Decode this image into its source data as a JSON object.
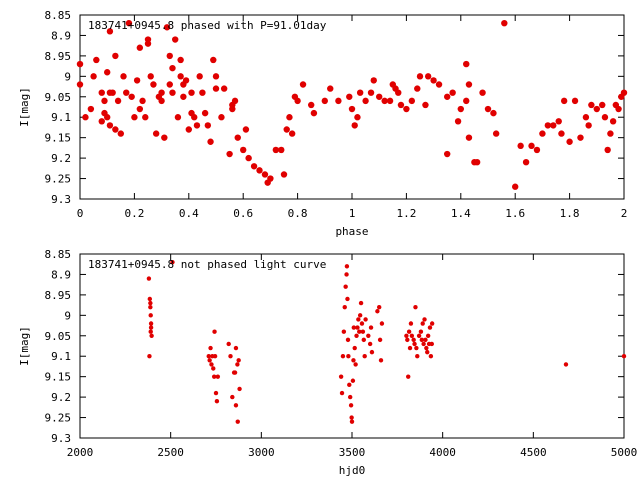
{
  "chart_data": [
    {
      "type": "scatter",
      "title": "183741+0945.8 phased with P=91.01day",
      "xlabel": "phase",
      "ylabel": "I[mag]",
      "xlim": [
        0,
        2
      ],
      "ylim": [
        8.85,
        9.3
      ],
      "y_inverted": true,
      "x_ticks": [
        "0",
        "0.2",
        "0.4",
        "0.6",
        "0.8",
        "1",
        "1.2",
        "1.4",
        "1.6",
        "1.8",
        "2"
      ],
      "y_ticks": [
        "8.85",
        "8.9",
        "8.95",
        "9",
        "9.05",
        "9.1",
        "9.15",
        "9.2",
        "9.25",
        "9.3"
      ],
      "marker_color": "#e00000",
      "points": [
        [
          0.0,
          8.97
        ],
        [
          0.0,
          9.02
        ],
        [
          0.02,
          9.1
        ],
        [
          0.04,
          9.08
        ],
        [
          0.05,
          9.0
        ],
        [
          0.06,
          8.96
        ],
        [
          0.08,
          9.04
        ],
        [
          0.08,
          9.11
        ],
        [
          0.09,
          9.06
        ],
        [
          0.09,
          9.09
        ],
        [
          0.1,
          9.1
        ],
        [
          0.1,
          8.99
        ],
        [
          0.11,
          9.04
        ],
        [
          0.11,
          9.12
        ],
        [
          0.11,
          8.89
        ],
        [
          0.12,
          9.04
        ],
        [
          0.13,
          9.13
        ],
        [
          0.13,
          8.95
        ],
        [
          0.14,
          9.06
        ],
        [
          0.15,
          9.14
        ],
        [
          0.16,
          9.0
        ],
        [
          0.17,
          9.04
        ],
        [
          0.18,
          8.87
        ],
        [
          0.19,
          9.05
        ],
        [
          0.2,
          9.1
        ],
        [
          0.21,
          9.01
        ],
        [
          0.22,
          9.08
        ],
        [
          0.22,
          8.93
        ],
        [
          0.23,
          9.06
        ],
        [
          0.24,
          9.1
        ],
        [
          0.25,
          8.91
        ],
        [
          0.25,
          8.92
        ],
        [
          0.26,
          9.0
        ],
        [
          0.27,
          9.02
        ],
        [
          0.28,
          9.14
        ],
        [
          0.29,
          9.05
        ],
        [
          0.3,
          9.04
        ],
        [
          0.3,
          9.06
        ],
        [
          0.31,
          9.15
        ],
        [
          0.32,
          8.88
        ],
        [
          0.33,
          9.02
        ],
        [
          0.34,
          9.04
        ],
        [
          0.35,
          8.91
        ],
        [
          0.36,
          9.1
        ],
        [
          0.37,
          9.0
        ],
        [
          0.37,
          8.96
        ],
        [
          0.38,
          9.02
        ],
        [
          0.38,
          9.05
        ],
        [
          0.39,
          9.01
        ],
        [
          0.4,
          9.13
        ],
        [
          0.41,
          9.04
        ],
        [
          0.41,
          9.09
        ],
        [
          0.42,
          9.1
        ],
        [
          0.43,
          9.12
        ],
        [
          0.44,
          9.0
        ],
        [
          0.45,
          9.04
        ],
        [
          0.46,
          9.09
        ],
        [
          0.47,
          9.12
        ],
        [
          0.48,
          9.16
        ],
        [
          0.49,
          8.96
        ],
        [
          0.5,
          9.0
        ],
        [
          0.5,
          9.03
        ],
        [
          0.52,
          9.1
        ],
        [
          0.53,
          9.03
        ],
        [
          0.55,
          9.19
        ],
        [
          0.56,
          9.07
        ],
        [
          0.56,
          9.08
        ],
        [
          0.57,
          9.06
        ],
        [
          0.58,
          9.15
        ],
        [
          0.6,
          9.18
        ],
        [
          0.61,
          9.13
        ],
        [
          0.62,
          9.2
        ],
        [
          0.64,
          9.22
        ],
        [
          0.66,
          9.23
        ],
        [
          0.68,
          9.24
        ],
        [
          0.69,
          9.26
        ],
        [
          0.7,
          9.25
        ],
        [
          0.72,
          9.18
        ],
        [
          0.74,
          9.18
        ],
        [
          0.75,
          9.24
        ],
        [
          0.76,
          9.13
        ],
        [
          0.77,
          9.1
        ],
        [
          0.78,
          9.14
        ],
        [
          0.79,
          9.05
        ],
        [
          0.8,
          9.06
        ],
        [
          0.82,
          9.02
        ],
        [
          0.85,
          9.07
        ],
        [
          0.86,
          9.09
        ],
        [
          0.9,
          9.06
        ],
        [
          0.92,
          9.03
        ],
        [
          0.95,
          9.06
        ],
        [
          0.99,
          9.05
        ],
        [
          1.0,
          9.08
        ],
        [
          1.01,
          9.12
        ],
        [
          1.02,
          9.1
        ],
        [
          1.03,
          9.04
        ],
        [
          1.05,
          9.06
        ],
        [
          1.07,
          9.04
        ],
        [
          1.08,
          9.01
        ],
        [
          1.1,
          9.05
        ],
        [
          1.12,
          9.06
        ],
        [
          1.14,
          9.06
        ],
        [
          1.15,
          9.02
        ],
        [
          1.16,
          9.03
        ],
        [
          1.17,
          9.04
        ],
        [
          1.18,
          9.07
        ],
        [
          1.2,
          9.08
        ],
        [
          1.22,
          9.06
        ],
        [
          1.24,
          9.03
        ],
        [
          1.25,
          9.0
        ],
        [
          1.27,
          9.07
        ],
        [
          1.28,
          9.0
        ],
        [
          1.3,
          9.01
        ],
        [
          1.32,
          9.02
        ],
        [
          1.35,
          9.05
        ],
        [
          1.37,
          9.04
        ],
        [
          1.39,
          9.11
        ],
        [
          1.4,
          9.08
        ],
        [
          1.42,
          9.06
        ],
        [
          1.42,
          8.97
        ],
        [
          1.43,
          9.15
        ],
        [
          1.43,
          9.02
        ],
        [
          1.45,
          9.21
        ],
        [
          1.46,
          9.21
        ],
        [
          1.48,
          9.04
        ],
        [
          1.5,
          9.08
        ],
        [
          1.52,
          9.09
        ],
        [
          1.53,
          9.14
        ],
        [
          1.56,
          8.87
        ],
        [
          1.6,
          9.27
        ],
        [
          1.62,
          9.17
        ],
        [
          1.64,
          9.21
        ],
        [
          1.66,
          9.17
        ],
        [
          1.68,
          9.18
        ],
        [
          1.7,
          9.14
        ],
        [
          1.72,
          9.12
        ],
        [
          1.74,
          9.12
        ],
        [
          1.76,
          9.11
        ],
        [
          1.77,
          9.14
        ],
        [
          1.78,
          9.06
        ],
        [
          1.8,
          9.16
        ],
        [
          1.82,
          9.06
        ],
        [
          1.84,
          9.15
        ],
        [
          1.86,
          9.1
        ],
        [
          1.87,
          9.12
        ],
        [
          1.88,
          9.07
        ],
        [
          1.9,
          9.08
        ],
        [
          1.92,
          9.07
        ],
        [
          1.93,
          9.1
        ],
        [
          1.94,
          9.18
        ],
        [
          1.95,
          9.14
        ],
        [
          1.96,
          9.11
        ],
        [
          1.97,
          9.07
        ],
        [
          1.98,
          9.08
        ],
        [
          1.99,
          9.05
        ],
        [
          2.0,
          9.04
        ],
        [
          1.35,
          9.19
        ],
        [
          0.33,
          8.95
        ],
        [
          0.34,
          8.98
        ]
      ]
    },
    {
      "type": "scatter",
      "title": "183741+0945.8 not phased light curve",
      "xlabel": "hjd0",
      "ylabel": "I[mag]",
      "xlim": [
        2000,
        5000
      ],
      "ylim": [
        8.85,
        9.3
      ],
      "y_inverted": true,
      "x_ticks": [
        "2000",
        "2500",
        "3000",
        "3500",
        "4000",
        "4500",
        "5000"
      ],
      "y_ticks": [
        "8.85",
        "8.9",
        "8.95",
        "9",
        "9.05",
        "9.1",
        "9.15",
        "9.2",
        "9.25",
        "9.3"
      ],
      "marker_color": "#e00000",
      "points": [
        [
          2380,
          8.91
        ],
        [
          2385,
          8.96
        ],
        [
          2388,
          8.97
        ],
        [
          2390,
          9.0
        ],
        [
          2390,
          9.04
        ],
        [
          2392,
          9.02
        ],
        [
          2395,
          9.05
        ],
        [
          2383,
          9.1
        ],
        [
          2388,
          8.98
        ],
        [
          2392,
          9.03
        ],
        [
          2510,
          8.87
        ],
        [
          2710,
          9.1
        ],
        [
          2715,
          9.11
        ],
        [
          2720,
          9.08
        ],
        [
          2725,
          9.12
        ],
        [
          2730,
          9.1
        ],
        [
          2735,
          9.13
        ],
        [
          2740,
          9.15
        ],
        [
          2745,
          9.1
        ],
        [
          2750,
          9.19
        ],
        [
          2755,
          9.21
        ],
        [
          2760,
          9.15
        ],
        [
          2742,
          9.04
        ],
        [
          2820,
          9.07
        ],
        [
          2830,
          9.1
        ],
        [
          2840,
          9.2
        ],
        [
          2850,
          9.14
        ],
        [
          2860,
          9.22
        ],
        [
          2870,
          9.26
        ],
        [
          2880,
          9.18
        ],
        [
          2875,
          9.11
        ],
        [
          2868,
          9.12
        ],
        [
          2860,
          9.08
        ],
        [
          2855,
          9.14
        ],
        [
          3440,
          9.15
        ],
        [
          3445,
          9.19
        ],
        [
          3450,
          9.1
        ],
        [
          3455,
          9.04
        ],
        [
          3460,
          8.98
        ],
        [
          3465,
          8.93
        ],
        [
          3470,
          8.9
        ],
        [
          3472,
          8.88
        ],
        [
          3475,
          8.96
        ],
        [
          3478,
          9.06
        ],
        [
          3480,
          9.1
        ],
        [
          3485,
          9.17
        ],
        [
          3490,
          9.2
        ],
        [
          3495,
          9.22
        ],
        [
          3498,
          9.25
        ],
        [
          3500,
          9.26
        ],
        [
          3505,
          9.16
        ],
        [
          3508,
          9.11
        ],
        [
          3510,
          9.03
        ],
        [
          3515,
          9.08
        ],
        [
          3520,
          9.12
        ],
        [
          3525,
          9.05
        ],
        [
          3530,
          9.03
        ],
        [
          3535,
          9.01
        ],
        [
          3540,
          9.04
        ],
        [
          3545,
          9.0
        ],
        [
          3550,
          8.97
        ],
        [
          3555,
          9.02
        ],
        [
          3560,
          9.04
        ],
        [
          3565,
          9.06
        ],
        [
          3570,
          9.1
        ],
        [
          3575,
          9.01
        ],
        [
          3590,
          9.05
        ],
        [
          3600,
          9.07
        ],
        [
          3605,
          9.03
        ],
        [
          3610,
          9.09
        ],
        [
          3640,
          8.99
        ],
        [
          3650,
          8.98
        ],
        [
          3655,
          9.06
        ],
        [
          3660,
          9.11
        ],
        [
          3665,
          9.02
        ],
        [
          3800,
          9.05
        ],
        [
          3805,
          9.06
        ],
        [
          3810,
          9.15
        ],
        [
          3815,
          9.04
        ],
        [
          3820,
          9.08
        ],
        [
          3825,
          9.02
        ],
        [
          3830,
          9.05
        ],
        [
          3840,
          9.06
        ],
        [
          3845,
          9.07
        ],
        [
          3850,
          8.98
        ],
        [
          3855,
          9.08
        ],
        [
          3860,
          9.1
        ],
        [
          3870,
          9.05
        ],
        [
          3880,
          9.04
        ],
        [
          3885,
          9.06
        ],
        [
          3890,
          9.02
        ],
        [
          3895,
          9.07
        ],
        [
          3900,
          9.01
        ],
        [
          3905,
          9.06
        ],
        [
          3910,
          9.08
        ],
        [
          3915,
          9.09
        ],
        [
          3920,
          9.05
        ],
        [
          3925,
          9.07
        ],
        [
          3930,
          9.03
        ],
        [
          3935,
          9.1
        ],
        [
          3940,
          9.07
        ],
        [
          3942,
          9.02
        ],
        [
          4680,
          9.12
        ],
        [
          5000,
          9.1
        ]
      ]
    }
  ]
}
